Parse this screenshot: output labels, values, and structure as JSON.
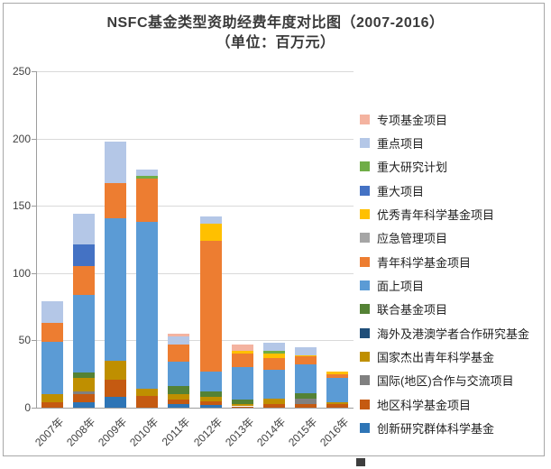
{
  "title": {
    "line1": "NSFC基金类型资助经费年度对比图（2007-2016）",
    "line2": "（单位：百万元）"
  },
  "chart_data": {
    "type": "bar",
    "stacked": true,
    "title": "NSFC基金类型资助经费年度对比图（2007-2016）",
    "subtitle": "（单位：百万元）",
    "unit": "百万元",
    "categories": [
      "2007年",
      "2008年",
      "2009年",
      "2010年",
      "2011年",
      "2012年",
      "2013年",
      "2014年",
      "2015年",
      "2016年"
    ],
    "series": [
      {
        "name": "创新研究群体科学基金",
        "color": "#2E75B6",
        "values": [
          0,
          4,
          8,
          0,
          3,
          2,
          0,
          0,
          0,
          0
        ]
      },
      {
        "name": "地区科学基金项目",
        "color": "#C55A11",
        "values": [
          4,
          6,
          13,
          9,
          3,
          3,
          1,
          3,
          3,
          3
        ]
      },
      {
        "name": "国际(地区)合作与交流项目",
        "color": "#808080",
        "values": [
          0,
          2,
          0,
          0,
          0,
          0,
          0,
          0,
          4,
          0
        ]
      },
      {
        "name": "国家杰出青年科学基金",
        "color": "#BF8F00",
        "values": [
          6,
          10,
          14,
          5,
          4,
          3,
          2,
          4,
          0,
          1
        ]
      },
      {
        "name": "海外及港澳学者合作研究基金",
        "color": "#1F4E79",
        "values": [
          0,
          0,
          0,
          0,
          0,
          0,
          0,
          0,
          0,
          0
        ]
      },
      {
        "name": "联合基金项目",
        "color": "#548235",
        "values": [
          0,
          4,
          0,
          0,
          6,
          4,
          3,
          0,
          4,
          0
        ]
      },
      {
        "name": "面上项目",
        "color": "#5B9BD5",
        "values": [
          39,
          58,
          106,
          124,
          18,
          15,
          24,
          21,
          21,
          18
        ]
      },
      {
        "name": "青年科学基金项目",
        "color": "#ED7D31",
        "values": [
          14,
          21,
          26,
          32,
          13,
          97,
          10,
          9,
          6,
          3
        ]
      },
      {
        "name": "应急管理项目",
        "color": "#A5A5A5",
        "values": [
          0,
          0,
          0,
          0,
          0,
          0,
          0,
          0,
          0,
          0
        ]
      },
      {
        "name": "优秀青年科学基金项目",
        "color": "#FFC000",
        "values": [
          0,
          0,
          0,
          0,
          0,
          13,
          2,
          3,
          1,
          2
        ]
      },
      {
        "name": "重大项目",
        "color": "#4472C4",
        "values": [
          0,
          16,
          0,
          0,
          0,
          0,
          0,
          0,
          0,
          0
        ]
      },
      {
        "name": "重大研究计划",
        "color": "#70AD47",
        "values": [
          0,
          0,
          0,
          2,
          0,
          0,
          0,
          2,
          0,
          0
        ]
      },
      {
        "name": "重点项目",
        "color": "#B4C7E7",
        "values": [
          16,
          23,
          31,
          5,
          6,
          5,
          0,
          6,
          6,
          0
        ]
      },
      {
        "name": "专项基金项目",
        "color": "#F4B3A0",
        "values": [
          0,
          0,
          0,
          0,
          2,
          0,
          5,
          0,
          0,
          0
        ]
      }
    ],
    "series_order_note": "series listed bottom-to-top of stack; legend shows reverse order (top of stack first)",
    "totals_by_year": [
      79,
      144,
      198,
      177,
      55,
      142,
      47,
      48,
      45,
      27
    ],
    "ylim": [
      0,
      250
    ],
    "yticks": [
      0,
      50,
      100,
      150,
      200,
      250
    ],
    "xlabel": "",
    "ylabel": "",
    "grid": true,
    "legend_position": "right"
  }
}
